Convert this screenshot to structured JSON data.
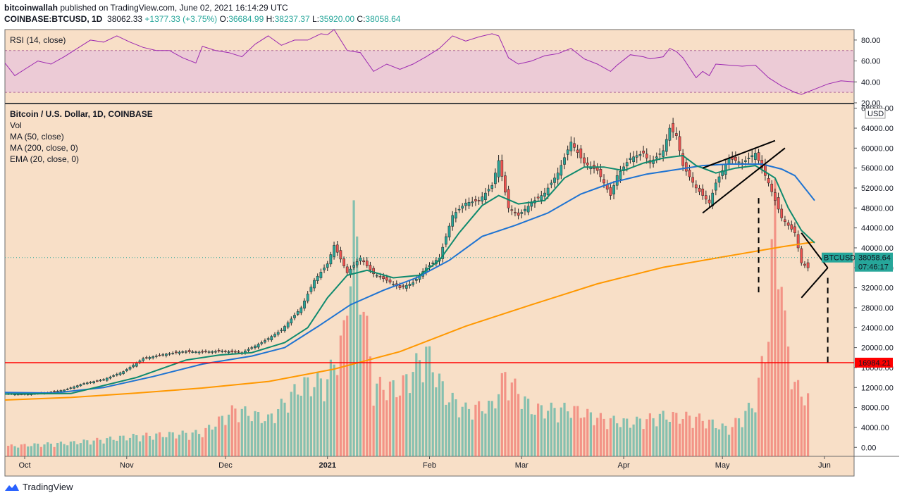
{
  "header": {
    "author": "bitcoinwallah",
    "published": "published on TradingView.com, June 02, 2021 16:14:29 UTC",
    "symbol": "COINBASE:BTCUSD, 1D",
    "price": "38062.33",
    "change": "+1377.33 (+3.75%)",
    "o_label": "O:",
    "o": "36684.99",
    "h_label": "H:",
    "h": "38237.37",
    "l_label": "L:",
    "l": "35920.00",
    "c_label": "C:",
    "c": "38058.64"
  },
  "footer": {
    "brand": "TradingView"
  },
  "colors": {
    "background": "#f8dfc7",
    "rsi_band": "#eccbd6",
    "rsi_line": "#9c27b0",
    "up": "#26a69a",
    "down": "#ef5350",
    "ma50": "#1e73d2",
    "ma200": "#ff9800",
    "ema20": "#0e8a6e",
    "support": "#ff0000"
  },
  "chart_data": {
    "type": "candlestick",
    "title": "Bitcoin / U.S. Dollar, 1D, COINBASE",
    "indicators": [
      "Vol",
      "MA (50, close)",
      "MA (200, close, 0)",
      "EMA (20, close, 0)"
    ],
    "rsi_label": "RSI (14, close)",
    "rsi_ticks": [
      "80.00",
      "60.00",
      "40.00",
      "20.00"
    ],
    "rsi_range": [
      20,
      90
    ],
    "rsi_band": [
      30,
      70
    ],
    "price_ticks": [
      "68000.00",
      "64000.00",
      "60000.00",
      "56000.00",
      "52000.00",
      "48000.00",
      "44000.00",
      "40000.00",
      "36000.00",
      "32000.00",
      "28000.00",
      "24000.00",
      "20000.00",
      "16000.00",
      "12000.00",
      "8000.00",
      "4000.00",
      "0.00"
    ],
    "price_range": [
      -1800,
      68800
    ],
    "currency": "USD",
    "x_ticks": [
      "Oct",
      "Nov",
      "Dec",
      "2021",
      "Feb",
      "Mar",
      "Apr",
      "May",
      "Jun"
    ],
    "x_tick_days": [
      6,
      37,
      67,
      98,
      129,
      157,
      188,
      218,
      249
    ],
    "day_range": [
      0,
      258
    ],
    "last_day": 244,
    "price_tag": {
      "label": "BTCUSD",
      "value": "38058.64",
      "countdown": "07:46:17"
    },
    "support": {
      "value": 16984.21,
      "label": "16984.21"
    },
    "price_path": [
      [
        0,
        10700
      ],
      [
        6,
        10600
      ],
      [
        12,
        10900
      ],
      [
        18,
        11500
      ],
      [
        24,
        12800
      ],
      [
        30,
        13600
      ],
      [
        36,
        15200
      ],
      [
        42,
        17800
      ],
      [
        48,
        18600
      ],
      [
        54,
        19200
      ],
      [
        60,
        19100
      ],
      [
        66,
        19300
      ],
      [
        72,
        19000
      ],
      [
        78,
        21000
      ],
      [
        84,
        23500
      ],
      [
        90,
        28000
      ],
      [
        94,
        33500
      ],
      [
        98,
        36800
      ],
      [
        100,
        40500
      ],
      [
        104,
        35000
      ],
      [
        108,
        38000
      ],
      [
        112,
        34800
      ],
      [
        116,
        33500
      ],
      [
        120,
        32000
      ],
      [
        124,
        33000
      ],
      [
        128,
        36000
      ],
      [
        132,
        38000
      ],
      [
        136,
        46500
      ],
      [
        140,
        49000
      ],
      [
        144,
        49500
      ],
      [
        148,
        52500
      ],
      [
        150,
        57500
      ],
      [
        153,
        48000
      ],
      [
        156,
        46500
      ],
      [
        160,
        49000
      ],
      [
        164,
        51000
      ],
      [
        168,
        55000
      ],
      [
        172,
        61200
      ],
      [
        176,
        57000
      ],
      [
        180,
        55500
      ],
      [
        184,
        50500
      ],
      [
        186,
        54500
      ],
      [
        190,
        58000
      ],
      [
        194,
        59000
      ],
      [
        196,
        57000
      ],
      [
        200,
        59500
      ],
      [
        202,
        64000
      ],
      [
        204,
        62500
      ],
      [
        206,
        56500
      ],
      [
        210,
        52000
      ],
      [
        214,
        49000
      ],
      [
        216,
        53000
      ],
      [
        220,
        58000
      ],
      [
        224,
        57000
      ],
      [
        228,
        59000
      ],
      [
        232,
        53000
      ],
      [
        236,
        46000
      ],
      [
        240,
        43000
      ],
      [
        242,
        37000
      ],
      [
        246,
        35000
      ],
      [
        250,
        37500
      ],
      [
        254,
        38000
      ],
      [
        258,
        38058
      ]
    ],
    "volume_path": [
      [
        0,
        600
      ],
      [
        20,
        800
      ],
      [
        40,
        1200
      ],
      [
        60,
        1400
      ],
      [
        70,
        2800
      ],
      [
        80,
        2200
      ],
      [
        90,
        4200
      ],
      [
        98,
        4500
      ],
      [
        103,
        7200
      ],
      [
        106,
        13600
      ],
      [
        112,
        4200
      ],
      [
        120,
        4000
      ],
      [
        128,
        6200
      ],
      [
        134,
        3600
      ],
      [
        140,
        2800
      ],
      [
        148,
        3000
      ],
      [
        152,
        4800
      ],
      [
        160,
        2800
      ],
      [
        172,
        2800
      ],
      [
        182,
        2200
      ],
      [
        190,
        2000
      ],
      [
        200,
        2400
      ],
      [
        210,
        2300
      ],
      [
        220,
        1600
      ],
      [
        228,
        3200
      ],
      [
        232,
        7500
      ],
      [
        234,
        15400
      ],
      [
        237,
        7600
      ],
      [
        240,
        4200
      ],
      [
        248,
        2600
      ],
      [
        258,
        800
      ]
    ],
    "rsi_path": [
      [
        0,
        58
      ],
      [
        3,
        46
      ],
      [
        6,
        52
      ],
      [
        10,
        60
      ],
      [
        14,
        57
      ],
      [
        18,
        64
      ],
      [
        22,
        72
      ],
      [
        26,
        80
      ],
      [
        30,
        78
      ],
      [
        34,
        84
      ],
      [
        38,
        78
      ],
      [
        42,
        73
      ],
      [
        46,
        70
      ],
      [
        50,
        70
      ],
      [
        54,
        63
      ],
      [
        58,
        58
      ],
      [
        60,
        74
      ],
      [
        64,
        70
      ],
      [
        68,
        68
      ],
      [
        72,
        64
      ],
      [
        76,
        76
      ],
      [
        80,
        84
      ],
      [
        84,
        75
      ],
      [
        88,
        80
      ],
      [
        92,
        80
      ],
      [
        96,
        86
      ],
      [
        98,
        85
      ],
      [
        100,
        90
      ],
      [
        104,
        70
      ],
      [
        108,
        68
      ],
      [
        112,
        50
      ],
      [
        116,
        57
      ],
      [
        120,
        52
      ],
      [
        124,
        57
      ],
      [
        128,
        64
      ],
      [
        132,
        72
      ],
      [
        136,
        84
      ],
      [
        140,
        79
      ],
      [
        144,
        83
      ],
      [
        148,
        86
      ],
      [
        150,
        84
      ],
      [
        153,
        63
      ],
      [
        156,
        57
      ],
      [
        160,
        60
      ],
      [
        164,
        65
      ],
      [
        168,
        67
      ],
      [
        172,
        72
      ],
      [
        176,
        62
      ],
      [
        180,
        57
      ],
      [
        184,
        50
      ],
      [
        186,
        56
      ],
      [
        190,
        66
      ],
      [
        194,
        64
      ],
      [
        196,
        62
      ],
      [
        200,
        64
      ],
      [
        202,
        72
      ],
      [
        204,
        69
      ],
      [
        206,
        63
      ],
      [
        210,
        44
      ],
      [
        212,
        50
      ],
      [
        214,
        46
      ],
      [
        216,
        57
      ],
      [
        220,
        56
      ],
      [
        224,
        55
      ],
      [
        228,
        56
      ],
      [
        232,
        44
      ],
      [
        236,
        36
      ],
      [
        240,
        30
      ],
      [
        242,
        28
      ],
      [
        246,
        33
      ],
      [
        250,
        38
      ],
      [
        254,
        41
      ],
      [
        258,
        40
      ]
    ],
    "ema20_path": [
      [
        0,
        10700
      ],
      [
        20,
        10800
      ],
      [
        40,
        14000
      ],
      [
        55,
        17500
      ],
      [
        65,
        18500
      ],
      [
        75,
        19000
      ],
      [
        85,
        21000
      ],
      [
        92,
        24000
      ],
      [
        98,
        30000
      ],
      [
        104,
        34500
      ],
      [
        110,
        35500
      ],
      [
        118,
        34000
      ],
      [
        126,
        34500
      ],
      [
        132,
        37500
      ],
      [
        138,
        43000
      ],
      [
        145,
        48500
      ],
      [
        150,
        50500
      ],
      [
        156,
        48800
      ],
      [
        164,
        49500
      ],
      [
        170,
        54000
      ],
      [
        176,
        56200
      ],
      [
        182,
        56200
      ],
      [
        188,
        55500
      ],
      [
        194,
        57000
      ],
      [
        200,
        58000
      ],
      [
        206,
        58500
      ],
      [
        210,
        56500
      ],
      [
        216,
        55000
      ],
      [
        222,
        56000
      ],
      [
        228,
        56500
      ],
      [
        234,
        54000
      ],
      [
        238,
        48000
      ],
      [
        242,
        43500
      ],
      [
        246,
        41000
      ]
    ],
    "ma50_path": [
      [
        0,
        11000
      ],
      [
        15,
        10900
      ],
      [
        30,
        12000
      ],
      [
        45,
        14200
      ],
      [
        60,
        16700
      ],
      [
        75,
        18300
      ],
      [
        85,
        20000
      ],
      [
        95,
        24200
      ],
      [
        105,
        28600
      ],
      [
        115,
        31500
      ],
      [
        125,
        34000
      ],
      [
        135,
        37500
      ],
      [
        145,
        42300
      ],
      [
        155,
        44500
      ],
      [
        165,
        47000
      ],
      [
        175,
        50800
      ],
      [
        185,
        53200
      ],
      [
        195,
        54800
      ],
      [
        205,
        55800
      ],
      [
        212,
        56500
      ],
      [
        220,
        56800
      ],
      [
        230,
        56800
      ],
      [
        236,
        55800
      ],
      [
        240,
        54500
      ],
      [
        246,
        49500
      ]
    ],
    "ma200_path": [
      [
        0,
        9500
      ],
      [
        20,
        10000
      ],
      [
        40,
        10900
      ],
      [
        60,
        11900
      ],
      [
        80,
        13200
      ],
      [
        100,
        15700
      ],
      [
        120,
        19200
      ],
      [
        140,
        24300
      ],
      [
        160,
        28600
      ],
      [
        180,
        32800
      ],
      [
        200,
        36100
      ],
      [
        220,
        38400
      ],
      [
        236,
        40200
      ],
      [
        246,
        41200
      ]
    ],
    "patterns": {
      "rising_wedge": [
        [
          [
            212,
            56000
          ],
          [
            234,
            61500
          ]
        ],
        [
          [
            212,
            47000
          ],
          [
            237,
            60000
          ]
        ]
      ],
      "triangle": [
        [
          [
            242,
            43000
          ],
          [
            250,
            36000
          ]
        ],
        [
          [
            242,
            30000
          ],
          [
            250,
            36000
          ]
        ]
      ],
      "projection_1": [
        [
          229,
          50000
        ],
        [
          229,
          30500
        ]
      ],
      "projection_2": [
        [
          250,
          34000
        ],
        [
          250,
          16984
        ]
      ]
    }
  }
}
